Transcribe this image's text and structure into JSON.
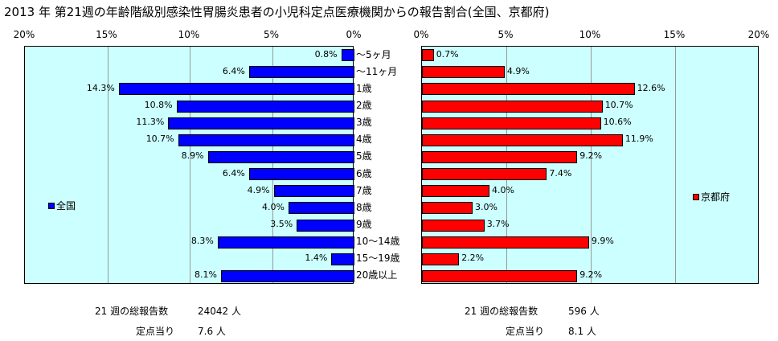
{
  "title": "2013 年 第21週の年齢階級別感染性胃腸炎患者の小児科定点医療機関からの報告割合(全国、京都府)",
  "chart_data": {
    "type": "bar",
    "orientation": "horizontal",
    "categories": [
      "～5ヶ月",
      "～11ヶ月",
      "1歳",
      "2歳",
      "3歳",
      "4歳",
      "5歳",
      "6歳",
      "7歳",
      "8歳",
      "9歳",
      "10～14歳",
      "15～19歳",
      "20歳以上"
    ],
    "series": [
      {
        "name": "全国",
        "values": [
          0.8,
          6.4,
          14.3,
          10.8,
          11.3,
          10.7,
          8.9,
          6.4,
          4.9,
          4.0,
          3.5,
          8.3,
          1.4,
          8.1
        ],
        "value_labels": [
          "0.8%",
          "6.4%",
          "14.3%",
          "10.8%",
          "11.3%",
          "10.7%",
          "8.9%",
          "6.4%",
          "4.9%",
          "4.0%",
          "3.5%",
          "8.3%",
          "1.4%",
          "8.1%"
        ],
        "color": "#0000ff"
      },
      {
        "name": "京都府",
        "values": [
          0.7,
          4.9,
          12.6,
          10.7,
          10.6,
          11.9,
          9.2,
          7.4,
          4.0,
          3.0,
          3.7,
          9.9,
          2.2,
          9.2
        ],
        "value_labels": [
          "0.7%",
          "4.9%",
          "12.6%",
          "10.7%",
          "10.6%",
          "11.9%",
          "9.2%",
          "7.4%",
          "4.0%",
          "3.0%",
          "3.7%",
          "9.9%",
          "2.2%",
          "9.2%"
        ],
        "color": "#ff0000"
      }
    ],
    "xlim": [
      0,
      20
    ],
    "tick_labels_left": [
      "20%",
      "15%",
      "10%",
      "5%",
      "0%"
    ],
    "tick_labels_right": [
      "0%",
      "5%",
      "10%",
      "15%",
      "20%"
    ],
    "grid": true,
    "panel_color": "#ccffff"
  },
  "stats": {
    "national": {
      "total_label": "21 週の総報告数",
      "total_value": "24042 人",
      "per_label": "定点当り",
      "per_value": "7.6 人"
    },
    "kyoto": {
      "total_label": "21 週の総報告数",
      "total_value": "596 人",
      "per_label": "定点当り",
      "per_value": "8.1 人"
    }
  }
}
